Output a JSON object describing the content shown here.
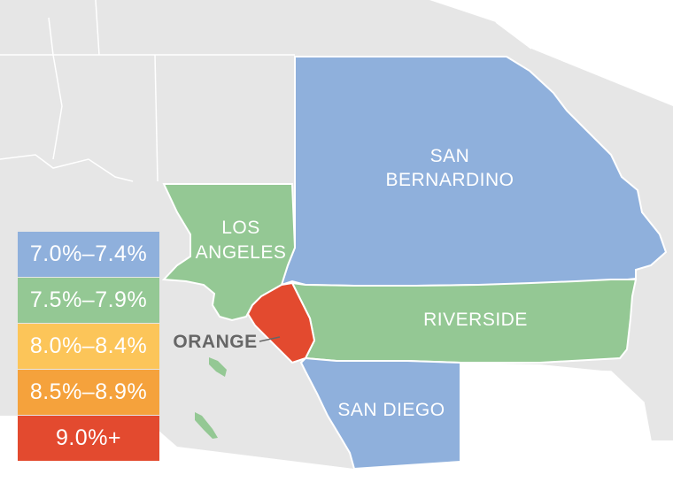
{
  "map": {
    "counties": [
      {
        "id": "san-bernardino",
        "label_lines": [
          "SAN",
          "BERNARDINO"
        ],
        "bin": "7.0%–7.4%"
      },
      {
        "id": "los-angeles",
        "label_lines": [
          "LOS",
          "ANGELES"
        ],
        "bin": "7.5%–7.9%"
      },
      {
        "id": "riverside",
        "label_lines": [
          "RIVERSIDE"
        ],
        "bin": "7.5%–7.9%"
      },
      {
        "id": "orange",
        "label_lines": [
          "ORANGE"
        ],
        "bin": "9.0%+"
      },
      {
        "id": "san-diego",
        "label_lines": [
          "SAN DIEGO"
        ],
        "bin": "7.0%–7.4%"
      }
    ]
  },
  "legend": [
    {
      "label": "7.0%–7.4%",
      "color": "#8fb0dc"
    },
    {
      "label": "7.5%–7.9%",
      "color": "#94c894"
    },
    {
      "label": "8.0%–8.4%",
      "color": "#fcc559"
    },
    {
      "label": "8.5%–8.9%",
      "color": "#f5a23c"
    },
    {
      "label": "9.0%+",
      "color": "#e34a2f"
    }
  ],
  "colors": {
    "background_land": "#e6e6e6",
    "borders": "#ffffff"
  }
}
